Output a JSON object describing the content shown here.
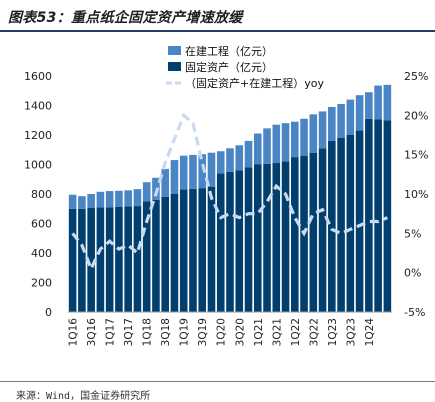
{
  "page": {
    "title": "图表53：重点纸企固定资产增速放缓",
    "source": "来源：Wind，国金证券研究所"
  },
  "chart_data": {
    "type": "bar",
    "stacked": true,
    "quarters": [
      "1Q16",
      "2Q16",
      "3Q16",
      "4Q16",
      "1Q17",
      "2Q17",
      "3Q17",
      "4Q17",
      "1Q18",
      "2Q18",
      "3Q18",
      "4Q18",
      "1Q19",
      "2Q19",
      "3Q19",
      "4Q19",
      "1Q20",
      "2Q20",
      "3Q20",
      "4Q20",
      "1Q21",
      "2Q21",
      "3Q21",
      "4Q21",
      "1Q22",
      "2Q22",
      "3Q22",
      "4Q22",
      "1Q23",
      "2Q23",
      "3Q23",
      "4Q23",
      "1Q24",
      "2Q24",
      "3Q24"
    ],
    "x_tick_labels": [
      "1Q16",
      "3Q16",
      "1Q17",
      "3Q17",
      "1Q18",
      "3Q18",
      "1Q19",
      "3Q19",
      "1Q20",
      "3Q20",
      "1Q21",
      "3Q21",
      "1Q22",
      "3Q22",
      "1Q23",
      "3Q23",
      "1Q24"
    ],
    "series": [
      {
        "name": "固定资产（亿元）",
        "color": "#003f6e",
        "axis": "left",
        "values": [
          700,
          700,
          705,
          710,
          710,
          712,
          715,
          718,
          750,
          760,
          780,
          800,
          830,
          835,
          840,
          850,
          940,
          950,
          960,
          980,
          1000,
          1005,
          1010,
          1020,
          1050,
          1060,
          1080,
          1110,
          1160,
          1180,
          1200,
          1230,
          1310,
          1305,
          1300
        ]
      },
      {
        "name": "在建工程（亿元）",
        "color": "#4a86c5",
        "axis": "left",
        "values": [
          95,
          85,
          95,
          105,
          110,
          110,
          110,
          115,
          130,
          150,
          190,
          230,
          230,
          230,
          230,
          230,
          150,
          160,
          170,
          180,
          210,
          240,
          260,
          260,
          240,
          250,
          260,
          250,
          230,
          230,
          240,
          240,
          180,
          230,
          240
        ]
      },
      {
        "name": "（固定资产+在建工程）yoy",
        "color": "#c9daf0",
        "type": "line",
        "style": "dashed",
        "axis": "right",
        "values_percent": [
          5.0,
          3.5,
          0.5,
          3.0,
          4.0,
          3.0,
          3.5,
          2.5,
          6.5,
          10.0,
          14.0,
          17.0,
          20.0,
          19.0,
          14.0,
          9.5,
          7.0,
          7.5,
          7.0,
          7.5,
          7.5,
          9.0,
          11.0,
          10.0,
          7.0,
          5.0,
          7.5,
          8.0,
          5.5,
          5.0,
          5.5,
          6.0,
          6.5,
          6.5,
          7.0
        ]
      }
    ],
    "ylim_left": [
      0,
      1600
    ],
    "yticks_left": [
      0,
      200,
      400,
      600,
      800,
      1000,
      1200,
      1400,
      1600
    ],
    "ylim_right": [
      -5,
      25
    ],
    "yticks_right": [
      "-5%",
      "0%",
      "5%",
      "10%",
      "15%",
      "20%",
      "25%"
    ],
    "legend_position": "top-center",
    "grid": false
  }
}
